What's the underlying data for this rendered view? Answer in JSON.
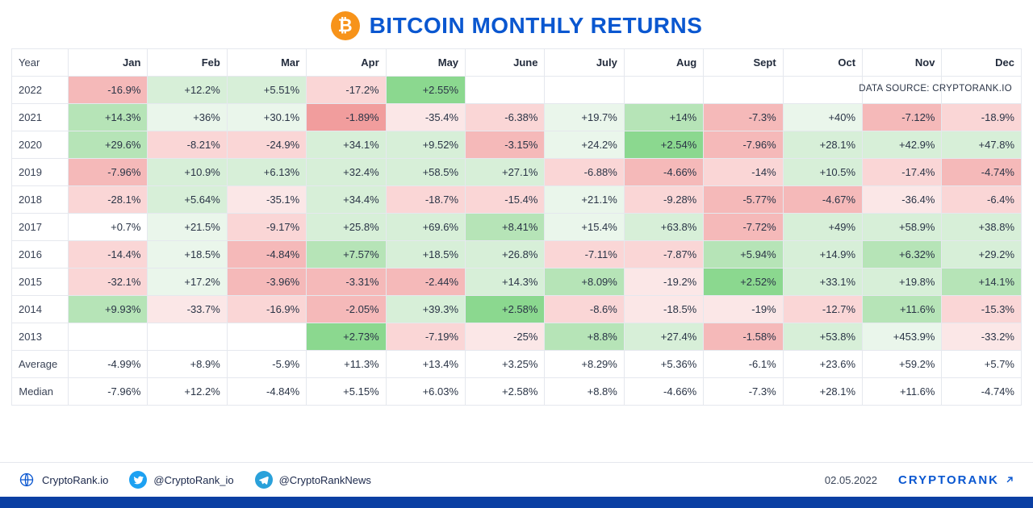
{
  "title": "BITCOIN MONTHLY RETURNS",
  "btc_symbol": "₿",
  "data_source": "DATA SOURCE: CRYPTORANK.IO",
  "columns": [
    "Year",
    "Jan",
    "Feb",
    "Mar",
    "Apr",
    "May",
    "June",
    "July",
    "Aug",
    "Sept",
    "Oct",
    "Nov",
    "Dec"
  ],
  "colors": {
    "green_strong": "#8bd88f",
    "green_mid": "#b6e4b7",
    "green_light": "#d7efd8",
    "green_faint": "#eaf6eb",
    "red_strong": "#f19d9d",
    "red_mid": "#f5b9b9",
    "red_light": "#fad6d6",
    "red_faint": "#fbe7e7",
    "white": "#ffffff"
  },
  "years": [
    {
      "year": "2022",
      "cells": [
        {
          "v": "-16.9%",
          "c": "red_mid"
        },
        {
          "v": "+12.2%",
          "c": "green_light"
        },
        {
          "v": "+5.51%",
          "c": "green_light"
        },
        {
          "v": "-17.2%",
          "c": "red_light"
        },
        {
          "v": "+2.55%",
          "c": "green_strong"
        },
        null,
        null,
        null,
        null,
        null,
        null,
        null
      ]
    },
    {
      "year": "2021",
      "cells": [
        {
          "v": "+14.3%",
          "c": "green_mid"
        },
        {
          "v": "+36%",
          "c": "green_faint"
        },
        {
          "v": "+30.1%",
          "c": "green_faint"
        },
        {
          "v": "-1.89%",
          "c": "red_strong"
        },
        {
          "v": "-35.4%",
          "c": "red_faint"
        },
        {
          "v": "-6.38%",
          "c": "red_light"
        },
        {
          "v": "+19.7%",
          "c": "green_faint"
        },
        {
          "v": "+14%",
          "c": "green_mid"
        },
        {
          "v": "-7.3%",
          "c": "red_mid"
        },
        {
          "v": "+40%",
          "c": "green_faint"
        },
        {
          "v": "-7.12%",
          "c": "red_mid"
        },
        {
          "v": "-18.9%",
          "c": "red_light"
        }
      ]
    },
    {
      "year": "2020",
      "cells": [
        {
          "v": "+29.6%",
          "c": "green_mid"
        },
        {
          "v": "-8.21%",
          "c": "red_light"
        },
        {
          "v": "-24.9%",
          "c": "red_light"
        },
        {
          "v": "+34.1%",
          "c": "green_light"
        },
        {
          "v": "+9.52%",
          "c": "green_light"
        },
        {
          "v": "-3.15%",
          "c": "red_mid"
        },
        {
          "v": "+24.2%",
          "c": "green_faint"
        },
        {
          "v": "+2.54%",
          "c": "green_strong"
        },
        {
          "v": "-7.96%",
          "c": "red_mid"
        },
        {
          "v": "+28.1%",
          "c": "green_light"
        },
        {
          "v": "+42.9%",
          "c": "green_light"
        },
        {
          "v": "+47.8%",
          "c": "green_light"
        }
      ]
    },
    {
      "year": "2019",
      "cells": [
        {
          "v": "-7.96%",
          "c": "red_mid"
        },
        {
          "v": "+10.9%",
          "c": "green_light"
        },
        {
          "v": "+6.13%",
          "c": "green_light"
        },
        {
          "v": "+32.4%",
          "c": "green_light"
        },
        {
          "v": "+58.5%",
          "c": "green_light"
        },
        {
          "v": "+27.1%",
          "c": "green_light"
        },
        {
          "v": "-6.88%",
          "c": "red_light"
        },
        {
          "v": "-4.66%",
          "c": "red_mid"
        },
        {
          "v": "-14%",
          "c": "red_light"
        },
        {
          "v": "+10.5%",
          "c": "green_light"
        },
        {
          "v": "-17.4%",
          "c": "red_light"
        },
        {
          "v": "-4.74%",
          "c": "red_mid"
        }
      ]
    },
    {
      "year": "2018",
      "cells": [
        {
          "v": "-28.1%",
          "c": "red_light"
        },
        {
          "v": "+5.64%",
          "c": "green_light"
        },
        {
          "v": "-35.1%",
          "c": "red_faint"
        },
        {
          "v": "+34.4%",
          "c": "green_light"
        },
        {
          "v": "-18.7%",
          "c": "red_light"
        },
        {
          "v": "-15.4%",
          "c": "red_light"
        },
        {
          "v": "+21.1%",
          "c": "green_faint"
        },
        {
          "v": "-9.28%",
          "c": "red_light"
        },
        {
          "v": "-5.77%",
          "c": "red_mid"
        },
        {
          "v": "-4.67%",
          "c": "red_mid"
        },
        {
          "v": "-36.4%",
          "c": "red_faint"
        },
        {
          "v": "-6.4%",
          "c": "red_light"
        }
      ]
    },
    {
      "year": "2017",
      "cells": [
        {
          "v": "+0.7%",
          "c": "white"
        },
        {
          "v": "+21.5%",
          "c": "green_faint"
        },
        {
          "v": "-9.17%",
          "c": "red_light"
        },
        {
          "v": "+25.8%",
          "c": "green_light"
        },
        {
          "v": "+69.6%",
          "c": "green_light"
        },
        {
          "v": "+8.41%",
          "c": "green_mid"
        },
        {
          "v": "+15.4%",
          "c": "green_faint"
        },
        {
          "v": "+63.8%",
          "c": "green_light"
        },
        {
          "v": "-7.72%",
          "c": "red_mid"
        },
        {
          "v": "+49%",
          "c": "green_light"
        },
        {
          "v": "+58.9%",
          "c": "green_light"
        },
        {
          "v": "+38.8%",
          "c": "green_light"
        }
      ]
    },
    {
      "year": "2016",
      "cells": [
        {
          "v": "-14.4%",
          "c": "red_light"
        },
        {
          "v": "+18.5%",
          "c": "green_faint"
        },
        {
          "v": "-4.84%",
          "c": "red_mid"
        },
        {
          "v": "+7.57%",
          "c": "green_mid"
        },
        {
          "v": "+18.5%",
          "c": "green_light"
        },
        {
          "v": "+26.8%",
          "c": "green_light"
        },
        {
          "v": "-7.11%",
          "c": "red_light"
        },
        {
          "v": "-7.87%",
          "c": "red_light"
        },
        {
          "v": "+5.94%",
          "c": "green_mid"
        },
        {
          "v": "+14.9%",
          "c": "green_light"
        },
        {
          "v": "+6.32%",
          "c": "green_mid"
        },
        {
          "v": "+29.2%",
          "c": "green_light"
        }
      ]
    },
    {
      "year": "2015",
      "cells": [
        {
          "v": "-32.1%",
          "c": "red_light"
        },
        {
          "v": "+17.2%",
          "c": "green_faint"
        },
        {
          "v": "-3.96%",
          "c": "red_mid"
        },
        {
          "v": "-3.31%",
          "c": "red_mid"
        },
        {
          "v": "-2.44%",
          "c": "red_mid"
        },
        {
          "v": "+14.3%",
          "c": "green_light"
        },
        {
          "v": "+8.09%",
          "c": "green_mid"
        },
        {
          "v": "-19.2%",
          "c": "red_faint"
        },
        {
          "v": "+2.52%",
          "c": "green_strong"
        },
        {
          "v": "+33.1%",
          "c": "green_light"
        },
        {
          "v": "+19.8%",
          "c": "green_light"
        },
        {
          "v": "+14.1%",
          "c": "green_mid"
        }
      ]
    },
    {
      "year": "2014",
      "cells": [
        {
          "v": "+9.93%",
          "c": "green_mid"
        },
        {
          "v": "-33.7%",
          "c": "red_faint"
        },
        {
          "v": "-16.9%",
          "c": "red_light"
        },
        {
          "v": "-2.05%",
          "c": "red_mid"
        },
        {
          "v": "+39.3%",
          "c": "green_light"
        },
        {
          "v": "+2.58%",
          "c": "green_strong"
        },
        {
          "v": "-8.6%",
          "c": "red_light"
        },
        {
          "v": "-18.5%",
          "c": "red_faint"
        },
        {
          "v": "-19%",
          "c": "red_faint"
        },
        {
          "v": "-12.7%",
          "c": "red_light"
        },
        {
          "v": "+11.6%",
          "c": "green_mid"
        },
        {
          "v": "-15.3%",
          "c": "red_light"
        }
      ]
    },
    {
      "year": "2013",
      "cells": [
        null,
        null,
        null,
        {
          "v": "+2.73%",
          "c": "green_strong"
        },
        {
          "v": "-7.19%",
          "c": "red_light"
        },
        {
          "v": "-25%",
          "c": "red_faint"
        },
        {
          "v": "+8.8%",
          "c": "green_mid"
        },
        {
          "v": "+27.4%",
          "c": "green_light"
        },
        {
          "v": "-1.58%",
          "c": "red_mid"
        },
        {
          "v": "+53.8%",
          "c": "green_light"
        },
        {
          "v": "+453.9%",
          "c": "green_faint"
        },
        {
          "v": "-33.2%",
          "c": "red_faint"
        }
      ]
    }
  ],
  "summary": [
    {
      "label": "Average",
      "values": [
        "-4.99%",
        "+8.9%",
        "-5.9%",
        "+11.3%",
        "+13.4%",
        "+3.25%",
        "+8.29%",
        "+5.36%",
        "-6.1%",
        "+23.6%",
        "+59.2%",
        "+5.7%"
      ]
    },
    {
      "label": "Median",
      "values": [
        "-7.96%",
        "+12.2%",
        "-4.84%",
        "+5.15%",
        "+6.03%",
        "+2.58%",
        "+8.8%",
        "-4.66%",
        "-7.3%",
        "+28.1%",
        "+11.6%",
        "-4.74%"
      ]
    }
  ],
  "footer": {
    "website": "CryptoRank.io",
    "twitter": "@CryptoRank_io",
    "telegram": "@CryptoRankNews",
    "date": "02.05.2022",
    "brand": "CRYPTORANK"
  }
}
